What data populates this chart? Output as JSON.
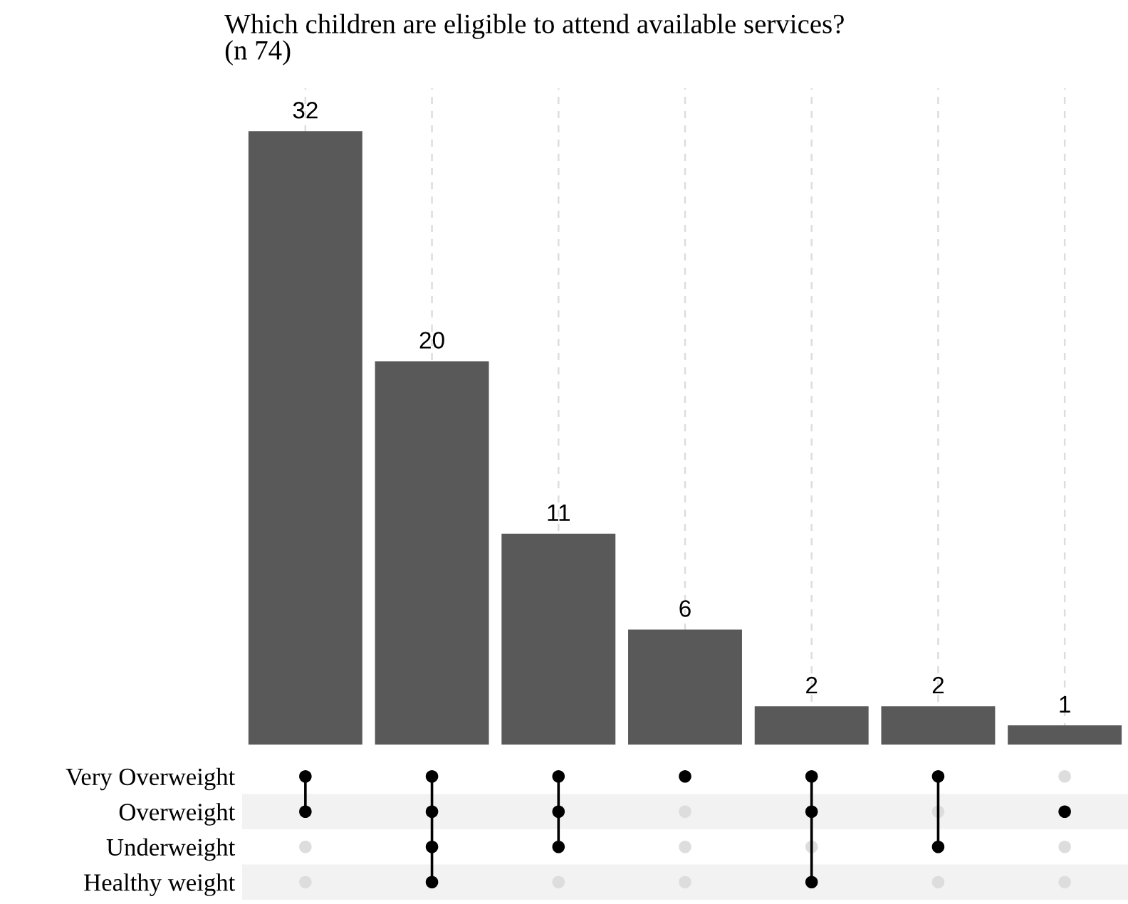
{
  "chart_data": [
    {
      "type": "bar",
      "title": "Which children are eligible to attend available services?",
      "subtitle": "(n 74)",
      "categories": [
        null,
        null,
        null,
        null,
        null,
        null,
        null
      ],
      "values": [
        32,
        20,
        11,
        6,
        2,
        2,
        1
      ],
      "color": "#595959",
      "data_labels": true,
      "grid": "x",
      "tick_labels": false
    },
    {
      "type": "other",
      "categories": [
        null,
        null,
        null,
        null,
        null,
        null,
        null
      ],
      "y_categories": [
        "Very Overweight",
        "Overweight",
        "Underweight",
        "Healthy weight"
      ],
      "cells": [
        [
          true,
          true,
          true,
          true,
          true,
          true,
          false
        ],
        [
          true,
          true,
          true,
          false,
          true,
          false,
          true
        ],
        [
          false,
          true,
          true,
          false,
          false,
          true,
          false
        ],
        [
          false,
          true,
          false,
          false,
          true,
          false,
          false
        ]
      ],
      "color": "#000000"
    }
  ]
}
